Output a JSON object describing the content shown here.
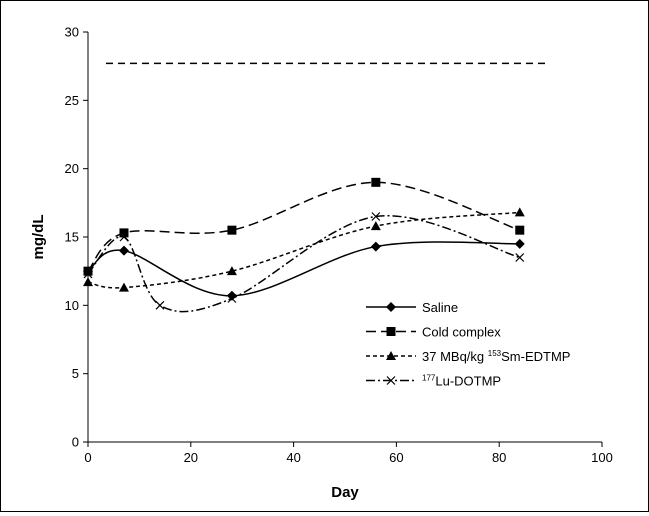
{
  "chart_data": {
    "type": "line",
    "title": "",
    "xlabel": "Day",
    "ylabel": "mg/dL",
    "xlim": [
      0,
      100
    ],
    "ylim": [
      0,
      30
    ],
    "xticks": [
      "0",
      "20",
      "40",
      "60",
      "80",
      "100"
    ],
    "yticks": [
      "0",
      "5",
      "10",
      "15",
      "20",
      "25",
      "30"
    ],
    "grid": false,
    "legend_position": "right",
    "series": [
      {
        "name": "Saline",
        "marker": "diamond",
        "dash": "solid",
        "x": [
          0,
          7,
          28,
          56,
          84
        ],
        "y": [
          12.5,
          14.0,
          10.7,
          14.3,
          14.5
        ]
      },
      {
        "name": "Cold complex",
        "marker": "square",
        "dash": "long-dash",
        "x": [
          0,
          7,
          28,
          56,
          84
        ],
        "y": [
          12.5,
          15.3,
          15.5,
          19.0,
          15.5
        ]
      },
      {
        "name": "37 MBq/kg ¹⁵³Sm-EDTMP",
        "legend_prefix": "37 MBq/kg ",
        "legend_sup": "153",
        "legend_suffix": "Sm-EDTMP",
        "marker": "triangle",
        "dash": "short-dash",
        "x": [
          0,
          7,
          28,
          56,
          84
        ],
        "y": [
          11.7,
          11.3,
          12.5,
          15.8,
          16.8
        ]
      },
      {
        "name": "¹⁷⁷Lu-DOTMP",
        "legend_prefix": "",
        "legend_sup": "177",
        "legend_suffix": "Lu-DOTMP",
        "marker": "x",
        "dash": "dash-dot",
        "x": [
          0,
          7,
          14,
          28,
          56,
          84
        ],
        "y": [
          12.3,
          15.0,
          10.0,
          10.5,
          16.5,
          13.5
        ]
      }
    ],
    "reference_line": {
      "y": 27.7,
      "x_start": 3.5,
      "x_end": 89,
      "dash": "dashed"
    }
  }
}
